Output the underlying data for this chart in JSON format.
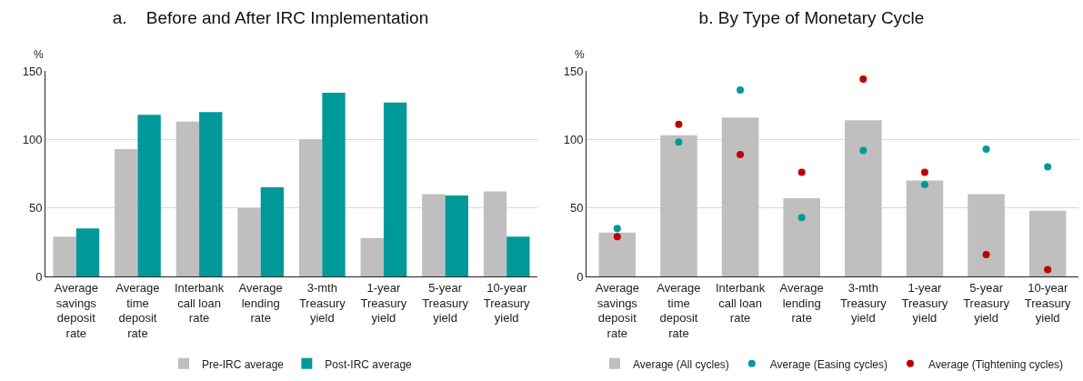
{
  "chart_data": [
    {
      "type": "bar",
      "title": "a.    Before and After IRC Implementation",
      "ylabel": "%",
      "categories": [
        "Average savings deposit rate",
        "Average time deposit rate",
        "Interbank call loan rate",
        "Average lending rate",
        "3-mth Treasury yield",
        "1-year Treasury yield",
        "5-year Treasury yield",
        "10-year Treasury yield"
      ],
      "series": [
        {
          "name": "Pre-IRC average",
          "color": "#bfbfbf",
          "values": [
            29,
            93,
            113,
            50,
            100,
            28,
            60,
            62
          ]
        },
        {
          "name": "Post-IRC average",
          "color": "#009999",
          "values": [
            35,
            118,
            120,
            65,
            134,
            127,
            59,
            29
          ]
        }
      ],
      "ylim": [
        0,
        150
      ],
      "yticks": [
        0,
        50,
        100,
        150
      ],
      "grid": "y",
      "legend": "bottom"
    },
    {
      "type": "bar",
      "title": "b. By Type of Monetary Cycle",
      "ylabel": "%",
      "categories": [
        "Average savings deposit rate",
        "Average time deposit rate",
        "Interbank call loan rate",
        "Average lending rate",
        "3-mth Treasury yield",
        "1-year Treasury yield",
        "5-year Treasury yield",
        "10-year Treasury yield"
      ],
      "series": [
        {
          "name": "Average (All cycles)",
          "color": "#bfbfbf",
          "values": [
            32,
            103,
            116,
            57,
            114,
            70,
            60,
            48
          ]
        },
        {
          "name": "Average (Easing cycles)",
          "type": "scatter",
          "color": "#009999",
          "values": [
            35,
            98,
            136,
            43,
            92,
            67,
            93,
            80
          ]
        },
        {
          "name": "Average (Tightening cycles)",
          "type": "scatter",
          "color": "#c00000",
          "values": [
            29,
            111,
            89,
            76,
            144,
            76,
            16,
            5
          ]
        }
      ],
      "ylim": [
        0,
        150
      ],
      "yticks": [
        0,
        50,
        100,
        150
      ],
      "grid": "y",
      "legend": "bottom",
      "marker": "circle"
    }
  ]
}
